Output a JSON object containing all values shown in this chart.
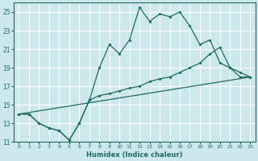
{
  "title": "",
  "xlabel": "Humidex (Indice chaleur)",
  "bg_color": "#cce8ed",
  "grid_color": "#ffffff",
  "line_color": "#1e6b5e",
  "xlim": [
    -0.5,
    23.5
  ],
  "ylim": [
    11,
    26
  ],
  "xticks": [
    0,
    1,
    2,
    3,
    4,
    5,
    6,
    7,
    8,
    9,
    10,
    11,
    12,
    13,
    14,
    15,
    16,
    17,
    18,
    19,
    20,
    21,
    22,
    23
  ],
  "yticks": [
    11,
    13,
    15,
    17,
    19,
    21,
    23,
    25
  ],
  "line1_x": [
    0,
    1,
    2,
    3,
    4,
    5,
    6,
    7,
    8,
    9,
    10,
    11,
    12,
    13,
    14,
    15,
    16,
    17,
    18,
    19,
    20,
    21,
    22,
    23
  ],
  "line1_y": [
    14.0,
    14.0,
    13.0,
    12.5,
    12.2,
    11.2,
    13.0,
    15.5,
    16.0,
    16.2,
    16.5,
    16.8,
    17.0,
    17.5,
    17.8,
    18.0,
    18.5,
    19.0,
    19.5,
    20.5,
    21.2,
    19.0,
    18.0,
    18.0
  ],
  "line2_x": [
    0,
    1,
    2,
    3,
    4,
    5,
    6,
    7,
    8,
    9,
    10,
    11,
    12,
    13,
    14,
    15,
    16,
    17,
    18,
    19,
    20,
    21,
    22,
    23
  ],
  "line2_y": [
    14.0,
    14.0,
    13.0,
    12.5,
    12.2,
    11.2,
    13.0,
    15.5,
    19.0,
    21.5,
    20.5,
    22.0,
    25.5,
    24.0,
    24.8,
    24.5,
    25.0,
    23.5,
    21.5,
    22.0,
    19.5,
    19.0,
    18.5,
    18.0
  ],
  "line3_x": [
    0,
    23
  ],
  "line3_y": [
    14.0,
    18.0
  ]
}
